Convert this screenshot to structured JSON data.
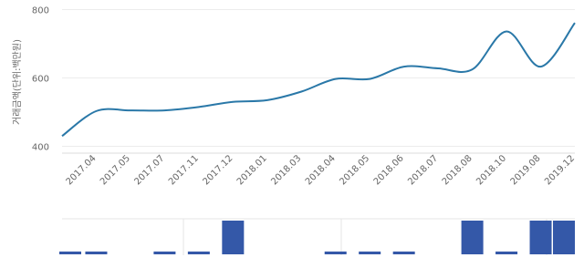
{
  "chart_data": [
    {
      "type": "line",
      "y_label": "거래금액(단위:백만원)",
      "categories": [
        null,
        "2017.04",
        "2017.05",
        "2017.07",
        "2017.11",
        "2017.12",
        "2018.01",
        "2018.03",
        "2018.04",
        "2018.05",
        "2018.06",
        "2018.07",
        "2018.08",
        "2018.10",
        "2019.08",
        "2019.12"
      ],
      "values": [
        430,
        503,
        505,
        505,
        515,
        530,
        535,
        560,
        597,
        597,
        633,
        628,
        625,
        736,
        633,
        761
      ],
      "color": "#2a78a8",
      "ylim": [
        380,
        820
      ],
      "yticks": [
        400,
        600,
        800
      ],
      "grid": true
    },
    {
      "type": "bar",
      "values": [
        1,
        1,
        null,
        1,
        1,
        12,
        null,
        null,
        1,
        1,
        1,
        null,
        12,
        1,
        12,
        12
      ],
      "color": "#3458a8",
      "ylim": [
        0,
        12
      ]
    }
  ]
}
